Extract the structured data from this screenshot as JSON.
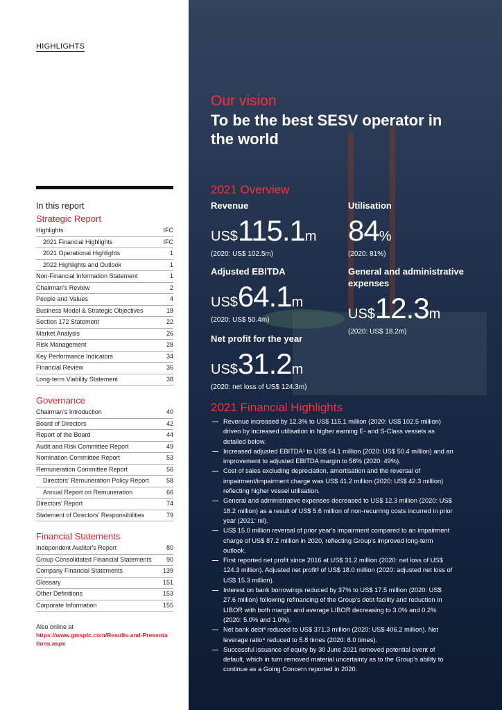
{
  "header": {
    "title": "HIGHLIGHTS"
  },
  "toc": {
    "title": "In this report",
    "sections": [
      {
        "title": "Strategic Report",
        "entries": [
          {
            "label": "Highlights",
            "page": "IFC",
            "children": [
              {
                "label": "2021 Financial Highlights",
                "page": "IFC"
              },
              {
                "label": "2021 Operational Highlights",
                "page": "1"
              },
              {
                "label": "2022 Highlights and Outlook",
                "page": "1"
              }
            ]
          },
          {
            "label": "Non-Financial Information Statement",
            "page": "1"
          },
          {
            "label": "Chairman's Review",
            "page": "2"
          },
          {
            "label": "People and Values",
            "page": "4"
          },
          {
            "label": "Business Model & Strategic Objectives",
            "page": "18"
          },
          {
            "label": "Section 172 Statement",
            "page": "22"
          },
          {
            "label": "Market Analysis",
            "page": "26"
          },
          {
            "label": "Risk Management",
            "page": "28"
          },
          {
            "label": "Key Performance Indicators",
            "page": "34"
          },
          {
            "label": "Financial Review",
            "page": "36"
          },
          {
            "label": "Long-term Viability Statement",
            "page": "38"
          }
        ]
      },
      {
        "title": "Governance",
        "entries": [
          {
            "label": "Chairman's Introduction",
            "page": "40"
          },
          {
            "label": "Board of Directors",
            "page": "42"
          },
          {
            "label": "Report of the Board",
            "page": "44"
          },
          {
            "label": "Audit and Risk Committee Report",
            "page": "49"
          },
          {
            "label": "Nomination Committee Report",
            "page": "53"
          },
          {
            "label": "Remuneration Committee Report",
            "page": "56",
            "children": [
              {
                "label": "Directors' Remuneration Policy Report",
                "page": "58"
              },
              {
                "label": "Annual Report on Remuneration",
                "page": "66"
              }
            ]
          },
          {
            "label": "Directors' Report",
            "page": "74"
          },
          {
            "label": "Statement of Directors' Responsibilities",
            "page": "79"
          }
        ]
      },
      {
        "title": "Financial Statements",
        "entries": [
          {
            "label": "Independent Auditor's Report",
            "page": "80"
          },
          {
            "label": "Group Consolidated Financial Statements",
            "page": "90"
          },
          {
            "label": "Company Financial Statements",
            "page": "139"
          },
          {
            "label": "Glossary",
            "page": "151"
          },
          {
            "label": "Other Definitions",
            "page": "153"
          },
          {
            "label": "Corporate Information",
            "page": "155"
          }
        ]
      }
    ]
  },
  "online": {
    "text": "Also online at",
    "url": "https://www.gmsplc.com/Results-and-Presentations.aspx"
  },
  "vision": {
    "heading": "Our vision",
    "statement": "To be the best SESV operator in the world"
  },
  "overview": {
    "title": "2021 Overview",
    "metrics": [
      {
        "label": "Revenue",
        "prefix": "US$",
        "value": 115.1,
        "unit": "m",
        "comparison": "(2020: US$ 102.5m)"
      },
      {
        "label": "Utilisation",
        "value": 84,
        "unit": "%",
        "comparison": "(2020: 81%)"
      },
      {
        "label": "Adjusted EBITDA",
        "prefix": "US$",
        "value": 64.1,
        "unit": "m",
        "comparison": "(2020: US$ 50.4m)"
      },
      {
        "label": "General and administrative expenses",
        "prefix": "US$",
        "value": 12.3,
        "unit": "m",
        "comparison": "(2020: US$ 18.2m)"
      },
      {
        "label": "Net profit for the year",
        "prefix": "US$",
        "value": 31.2,
        "unit": "m",
        "comparison": "(2020: net loss of US$ 124.3m)"
      }
    ]
  },
  "financial_highlights": {
    "title": "2021 Financial Highlights",
    "bullets": [
      "Revenue increased by 12.3% to US$ 115.1 million (2020: US$ 102.5 million) driven by increased utilisation in higher earning E- and S-Class vessels as detailed below.",
      "Increased adjusted EBITDA¹ to US$ 64.1 million (2020: US$ 50.4 million) and an improvement to adjusted EBITDA margin to 56% (2020: 49%).",
      "Cost of sales excluding depreciation, amortisation and the reversal of impairment/impairment charge was US$ 41.2 million (2020: US$ 42.3 million) reflecting higher vessel utilisation.",
      "General and administrative expenses decreased to US$ 12.3 million (2020: US$ 18.2 million) as a result of US$ 5.6 million of non-recurring costs incurred in prior year (2021: nil).",
      "US$ 15.0 million reversal of prior year's impairment compared to an impairment charge of US$ 87.2 million in 2020, reflecting Group's improved long-term outlook.",
      "First reported net profit since 2016 at US$ 31.2 million (2020: net loss of US$ 124.3 million). Adjusted net profit² of US$ 18.0 million (2020: adjusted net loss of US$ 15.3 million).",
      "Interest on bank borrowings reduced by 37% to US$ 17.5 million (2020: US$ 27.6 million) following refinancing of the Group's debt facility and reduction in LIBOR with both margin and average LIBOR decreasing to 3.0% and 0.2% (2020: 5.0% and 1.0%).",
      "Net bank debt³ reduced to US$ 371.3 million (2020: US$ 406.2 million). Net leverage ratio⁴ reduced to 5.8 times (2020: 8.0 times).",
      "Successful issuance of equity by 30 June 2021 removed potential event of default, which in turn removed material uncertainty as to the Group's ability to continue as a Going Concern reported in 2020."
    ]
  }
}
